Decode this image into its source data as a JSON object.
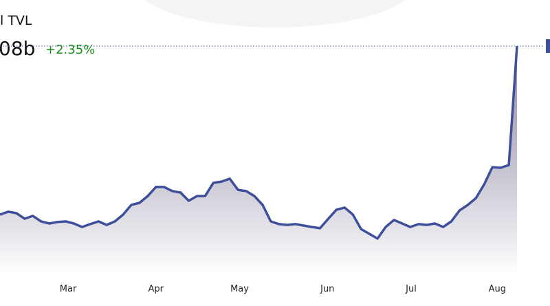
{
  "chart_data": {
    "type": "area",
    "title": "l TVL",
    "headline_value": "08b",
    "change": "+2.35%",
    "color": "#3d4f9a",
    "values": [
      29.3,
      30.7,
      30,
      27.3,
      28.7,
      26,
      25,
      25.7,
      26,
      25,
      23.3,
      24.7,
      26,
      24.3,
      26,
      29.3,
      34,
      35,
      38.3,
      42.7,
      42.7,
      40.7,
      40,
      36,
      38.3,
      38.3,
      44.7,
      45.3,
      46.7,
      41.3,
      40.7,
      38.3,
      34,
      26,
      24.7,
      24.3,
      24.7,
      24,
      23.3,
      22.7,
      27.3,
      31.7,
      32.7,
      29.3,
      22.3,
      20,
      17.7,
      23.3,
      26.7,
      25,
      23.3,
      24.7,
      24.3,
      25,
      23.3,
      26,
      31.3,
      34,
      37.3,
      44,
      52.3,
      52,
      53.3,
      111
    ],
    "xlim": [
      0,
      63
    ],
    "ylim": [
      0,
      130
    ],
    "xticks": [
      {
        "value": 8.3,
        "label": "Mar"
      },
      {
        "value": 19,
        "label": "Apr"
      },
      {
        "value": 29.2,
        "label": "May"
      },
      {
        "value": 39.9,
        "label": "Jun"
      },
      {
        "value": 50.1,
        "label": "Jul"
      },
      {
        "value": 60.6,
        "label": "Aug"
      }
    ]
  }
}
